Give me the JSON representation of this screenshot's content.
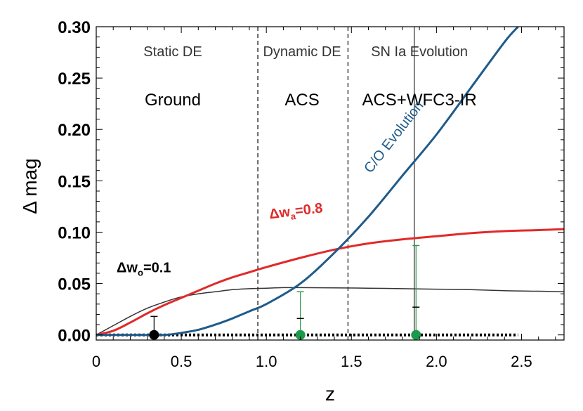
{
  "chart_data": {
    "type": "line",
    "xlabel": "z",
    "ylabel": "Δ mag",
    "xlim": [
      0,
      2.75
    ],
    "ylim": [
      -0.005,
      0.3
    ],
    "x_ticks": [
      0,
      0.5,
      1.0,
      1.5,
      2.0,
      2.5
    ],
    "x_tick_labels": [
      "0",
      "0.5",
      "1.0",
      "1.5",
      "2.0",
      "2.5"
    ],
    "y_ticks": [
      0.0,
      0.05,
      0.1,
      0.15,
      0.2,
      0.25,
      0.3
    ],
    "y_tick_labels": [
      "0.00",
      "0.05",
      "0.10",
      "0.15",
      "0.20",
      "0.25",
      "0.30"
    ],
    "region_dividers": [
      0.95,
      1.48,
      1.87
    ],
    "regions": [
      {
        "title": "Static DE",
        "instrument": "Ground",
        "x_center": 0.45
      },
      {
        "title": "Dynamic DE",
        "instrument": "ACS",
        "x_center": 1.21
      },
      {
        "title": "SN Ia Evolution",
        "instrument": "ACS+WFC3-IR",
        "x_center": 1.9
      }
    ],
    "series": [
      {
        "name": "Δw0=0.1",
        "label_main": "Δw",
        "label_sub": "o",
        "label_tail": "=0.1",
        "color": "#333333",
        "x": [
          0,
          0.1,
          0.2,
          0.3,
          0.4,
          0.5,
          0.6,
          0.7,
          0.8,
          0.9,
          1.0,
          1.1,
          1.2,
          1.4,
          1.6,
          1.8,
          2.0,
          2.2,
          2.4,
          2.6,
          2.75
        ],
        "y": [
          0,
          0.009,
          0.018,
          0.026,
          0.032,
          0.037,
          0.04,
          0.042,
          0.044,
          0.045,
          0.0455,
          0.046,
          0.046,
          0.0458,
          0.0455,
          0.045,
          0.0445,
          0.044,
          0.043,
          0.0425,
          0.042
        ]
      },
      {
        "name": "Δwa=0.8",
        "label_main": "Δw",
        "label_sub": "a",
        "label_tail": "=0.8",
        "color": "#e02a2a",
        "x": [
          0,
          0.1,
          0.2,
          0.3,
          0.4,
          0.5,
          0.6,
          0.7,
          0.8,
          0.9,
          1.0,
          1.2,
          1.4,
          1.6,
          1.8,
          2.0,
          2.2,
          2.4,
          2.6,
          2.75
        ],
        "y": [
          0,
          0.004,
          0.012,
          0.021,
          0.029,
          0.036,
          0.043,
          0.05,
          0.056,
          0.061,
          0.066,
          0.075,
          0.083,
          0.089,
          0.093,
          0.096,
          0.099,
          0.101,
          0.102,
          0.103
        ]
      },
      {
        "name": "C/O Evolution",
        "color": "#1f5b8a",
        "x": [
          0,
          0.2,
          0.4,
          0.5,
          0.6,
          0.7,
          0.8,
          0.9,
          1.0,
          1.2,
          1.4,
          1.6,
          1.8,
          2.0,
          2.2,
          2.4,
          2.48
        ],
        "y": [
          0,
          0,
          0.0,
          0.002,
          0.005,
          0.01,
          0.016,
          0.023,
          0.03,
          0.05,
          0.08,
          0.115,
          0.155,
          0.195,
          0.24,
          0.285,
          0.3
        ]
      }
    ],
    "error_points": [
      {
        "x": 0.34,
        "y": 0.0,
        "err_upper": 0.018,
        "color": "#000000",
        "bar_color": "#000000"
      },
      {
        "x": 1.2,
        "y": 0.0,
        "err_upper": 0.042,
        "inner_tick": 0.016,
        "color": "#1a9a4a",
        "bar_color": "#2e9b48"
      },
      {
        "x": 1.88,
        "y": 0.0,
        "err_upper": 0.087,
        "inner_tick": 0.027,
        "color": "#1a9a4a",
        "bar_color": "#2e9b48"
      }
    ],
    "dotted_baseline": {
      "x_start": 0.0,
      "x_end": 2.48,
      "y": 0.0
    },
    "annotations": [
      {
        "text": "C/O Evolution",
        "x": 1.77,
        "y": 0.19,
        "angle_deg": -52
      }
    ]
  }
}
